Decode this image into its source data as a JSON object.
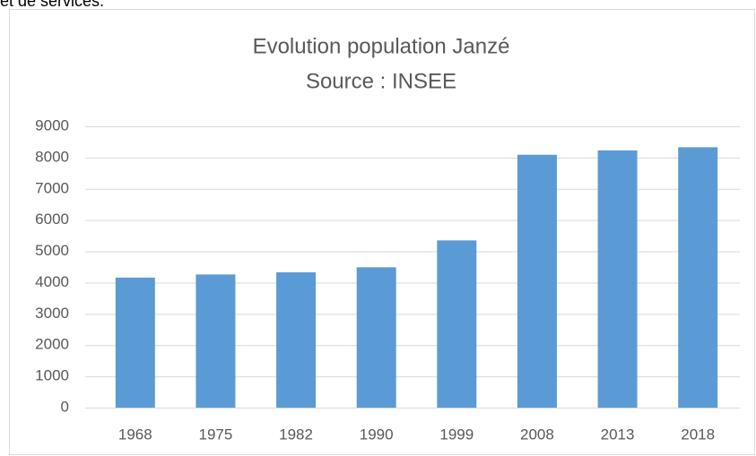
{
  "header_text": "et de services.",
  "chart_data": {
    "type": "bar",
    "title": "Evolution population Janzé",
    "subtitle": "Source : INSEE",
    "categories": [
      "1968",
      "1975",
      "1982",
      "1990",
      "1999",
      "2008",
      "2013",
      "2018"
    ],
    "values": [
      4160,
      4260,
      4330,
      4490,
      5350,
      8090,
      8230,
      8330
    ],
    "color": "#5b9bd5",
    "ylim": [
      0,
      9000
    ],
    "yticks": [
      0,
      1000,
      2000,
      3000,
      4000,
      5000,
      6000,
      7000,
      8000,
      9000
    ],
    "grid": true
  }
}
